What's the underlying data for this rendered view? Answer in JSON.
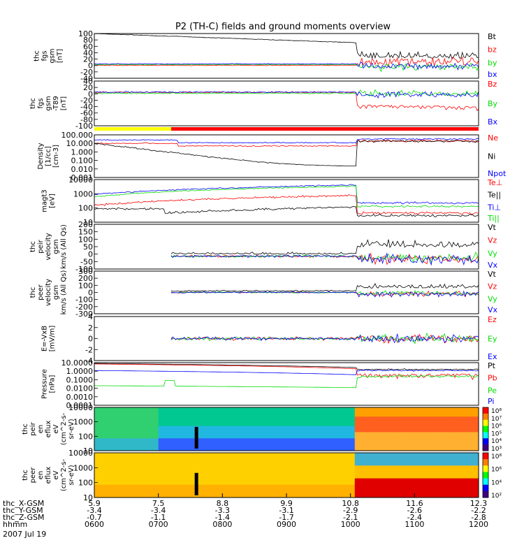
{
  "title": "P2 (TH-C) fields and ground moments overview",
  "colors": {
    "black": "#000000",
    "red": "#ff0000",
    "green": "#00dd00",
    "blue": "#0000ff",
    "yellow": "#ffff00"
  },
  "bar_segments": [
    {
      "from": "0600",
      "to": "0712",
      "color": "#ffff00"
    },
    {
      "from": "0712",
      "to": "1200",
      "color": "#ff0000"
    }
  ],
  "chart_data": {
    "type": "line",
    "x_range": [
      "0600",
      "1200"
    ],
    "x_tick_labels": {
      "times": [
        "0600",
        "0700",
        "0800",
        "0900",
        "1000",
        "1100",
        "1200"
      ],
      "rows": [
        {
          "label": "thc_X-GSM",
          "values": [
            "5.9",
            "7.5",
            "8.8",
            "9.9",
            "10.8",
            "11.6",
            "12.3"
          ]
        },
        {
          "label": "thc_Y-GSM",
          "values": [
            "-3.4",
            "-3.4",
            "-3.3",
            "-3.1",
            "-2.9",
            "-2.6",
            "-2.2"
          ]
        },
        {
          "label": "thc_Z-GSM",
          "values": [
            "-0.7",
            "-1.1",
            "-1.4",
            "-1.7",
            "-2.1",
            "-2.4",
            "-2.8"
          ]
        },
        {
          "label": "hhmm",
          "values": [
            "0600",
            "0700",
            "0800",
            "0900",
            "1000",
            "1100",
            "1200"
          ]
        }
      ],
      "date": "2007 Jul 19"
    },
    "panels": [
      {
        "ylabel": [
          "thc",
          "fgs",
          "gsm",
          "[nT]"
        ],
        "scale": "linear",
        "ylim": [
          -40,
          100
        ],
        "ticks": [
          "100",
          "80",
          "60",
          "40",
          "20",
          "0",
          "-20",
          "-40"
        ],
        "series": [
          {
            "name": "Bt",
            "color": "#000000"
          },
          {
            "name": "bz",
            "color": "#ff0000"
          },
          {
            "name": "by",
            "color": "#00dd00"
          },
          {
            "name": "bx",
            "color": "#0000ff"
          }
        ]
      },
      {
        "ylabel": [
          "thc",
          "fgs",
          "gsm",
          "-T89",
          "[nT]"
        ],
        "scale": "linear",
        "ylim": [
          -110,
          40
        ],
        "ticks": [
          "40",
          "20",
          "0",
          "-20",
          "-40",
          "-60",
          "-80",
          "-100"
        ],
        "series": [
          {
            "name": "Bz",
            "color": "#ff0000"
          },
          {
            "name": "By",
            "color": "#00dd00"
          },
          {
            "name": "Bx",
            "color": "#0000ff"
          }
        ]
      },
      {
        "ylabel": [
          "Density",
          "[1/cc]",
          "[cm-3]"
        ],
        "scale": "log",
        "ylim": [
          0.001,
          100
        ],
        "ticks": [
          "100.000",
          "10.000",
          "1.000",
          "0.100",
          "0.010",
          "0.001"
        ],
        "series": [
          {
            "name": "Ne",
            "color": "#ff0000"
          },
          {
            "name": "Ni",
            "color": "#000000"
          },
          {
            "name": "Npot",
            "color": "#0000ff"
          }
        ]
      },
      {
        "ylabel": [
          "magt3",
          "[eV]"
        ],
        "scale": "log",
        "ylim": [
          10,
          10000
        ],
        "ticks": [
          "10000",
          "1000",
          "100",
          "10"
        ],
        "series": [
          {
            "name": "Te⊥",
            "color": "#ff0000"
          },
          {
            "name": "Te||",
            "color": "#000000"
          },
          {
            "name": "Ti⊥",
            "color": "#0000ff"
          },
          {
            "name": "Ti||",
            "color": "#00dd00"
          }
        ]
      },
      {
        "ylabel": [
          "thc",
          "peir",
          "velocity",
          "gsm",
          "km/s (All Qs)"
        ],
        "scale": "linear",
        "ylim": [
          -100,
          250
        ],
        "ticks": [
          "200",
          "150",
          "100",
          "50",
          "0",
          "-50",
          "-100"
        ],
        "series": [
          {
            "name": "Vt",
            "color": "#000000"
          },
          {
            "name": "Vz",
            "color": "#ff0000"
          },
          {
            "name": "Vy",
            "color": "#00dd00"
          },
          {
            "name": "Vx",
            "color": "#0000ff"
          }
        ]
      },
      {
        "ylabel": [
          "thc",
          "peer",
          "velocity",
          "gsm",
          "km/s (All Qs)"
        ],
        "scale": "linear",
        "ylim": [
          -300,
          300
        ],
        "ticks": [
          "300",
          "200",
          "100",
          "0",
          "-100",
          "-200",
          "-300"
        ],
        "series": [
          {
            "name": "Vt",
            "color": "#000000"
          },
          {
            "name": "Vz",
            "color": "#ff0000"
          },
          {
            "name": "Vy",
            "color": "#00dd00"
          },
          {
            "name": "Vx",
            "color": "#0000ff"
          }
        ]
      },
      {
        "ylabel": [
          "E=-VxB",
          "[mV/m]"
        ],
        "scale": "linear",
        "ylim": [
          -6,
          6
        ],
        "ticks": [
          "4",
          "2",
          "0",
          "-2",
          "-4"
        ],
        "series": [
          {
            "name": "Ez",
            "color": "#ff0000"
          },
          {
            "name": "Ey",
            "color": "#00dd00"
          },
          {
            "name": "Ex",
            "color": "#0000ff"
          }
        ]
      },
      {
        "ylabel": [
          "Pressure",
          "[nPa]"
        ],
        "scale": "log",
        "ylim": [
          0.0001,
          10
        ],
        "ticks": [
          "10.0000",
          "1.0000",
          "0.1000",
          "0.0100",
          "0.0010",
          "0.0001"
        ],
        "series": [
          {
            "name": "Pt",
            "color": "#000000"
          },
          {
            "name": "Pb",
            "color": "#ff0000"
          },
          {
            "name": "Pe",
            "color": "#00dd00"
          },
          {
            "name": "Pi",
            "color": "#0000ff"
          }
        ]
      },
      {
        "type": "heatmap",
        "ylabel": [
          "thc",
          "peir",
          "en",
          "eflux",
          "eV",
          "(cm^2-s-",
          "sr-eV)"
        ],
        "scale": "log",
        "ylim": [
          5,
          20000
        ],
        "ticks": [
          "10000",
          "1000",
          "100",
          "10"
        ],
        "colorbar_ticks": [
          "10⁸",
          "10⁷",
          "10⁶",
          "10⁵",
          "10⁴",
          "10³"
        ]
      },
      {
        "type": "heatmap",
        "ylabel": [
          "thc",
          "peer",
          "en",
          "eflux",
          "eV",
          "(cm^2-s-",
          "sr-eV)"
        ],
        "scale": "log",
        "ylim": [
          5,
          20000
        ],
        "ticks": [
          "10000",
          "1000",
          "100",
          "10"
        ],
        "colorbar_ticks": [
          "10⁸",
          "10⁶",
          "10⁴",
          "10²"
        ]
      }
    ]
  }
}
